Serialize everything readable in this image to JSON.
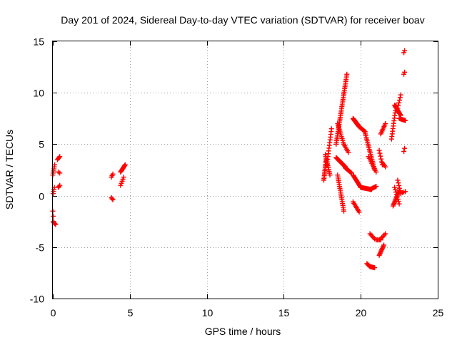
{
  "chart_data": {
    "type": "scatter",
    "title": "Day 201 of 2024, Sidereal Day-to-day VTEC variation (SDTVAR) for receiver boav",
    "xlabel": "GPS time / hours",
    "ylabel": "SDTVAR / TECUs",
    "xlim": [
      0,
      25
    ],
    "ylim": [
      -10,
      15
    ],
    "xticks": [
      0,
      5,
      10,
      15,
      20,
      25
    ],
    "yticks": [
      -10,
      -5,
      0,
      5,
      10,
      15
    ],
    "grid": true,
    "marker": "+",
    "color": "#ff0000",
    "segments": [
      {
        "x0": 0.0,
        "x1": 0.12,
        "y0": 2.0,
        "y1": 3.0,
        "n": 6
      },
      {
        "x0": 0.02,
        "x1": 0.1,
        "y0": 0.2,
        "y1": 0.8,
        "n": 4
      },
      {
        "x0": 0.0,
        "x1": 0.05,
        "y0": -1.5,
        "y1": -2.5,
        "n": 3
      },
      {
        "x0": 0.05,
        "x1": 0.18,
        "y0": -2.6,
        "y1": -2.8,
        "n": 4
      },
      {
        "x0": 0.3,
        "x1": 0.45,
        "y0": 3.5,
        "y1": 3.8,
        "n": 4
      },
      {
        "x0": 0.35,
        "x1": 0.45,
        "y0": 2.3,
        "y1": 2.2,
        "n": 2
      },
      {
        "x0": 0.35,
        "x1": 0.45,
        "y0": 0.8,
        "y1": 1.0,
        "n": 3
      },
      {
        "x0": 3.8,
        "x1": 3.9,
        "y0": 1.8,
        "y1": 2.1,
        "n": 3
      },
      {
        "x0": 3.8,
        "x1": 3.9,
        "y0": -0.2,
        "y1": -0.4,
        "n": 3
      },
      {
        "x0": 4.4,
        "x1": 4.7,
        "y0": 2.3,
        "y1": 3.0,
        "n": 10
      },
      {
        "x0": 4.4,
        "x1": 4.6,
        "y0": 1.0,
        "y1": 1.8,
        "n": 5
      },
      {
        "x0": 17.6,
        "x1": 17.75,
        "y0": 1.5,
        "y1": 3.5,
        "n": 14
      },
      {
        "x0": 17.7,
        "x1": 18.0,
        "y0": 4.0,
        "y1": 2.0,
        "n": 12
      },
      {
        "x0": 17.8,
        "x1": 18.1,
        "y0": 3.0,
        "y1": 6.5,
        "n": 14
      },
      {
        "x0": 18.4,
        "x1": 19.1,
        "y0": 5.0,
        "y1": 11.8,
        "n": 40
      },
      {
        "x0": 18.5,
        "x1": 18.9,
        "y0": 7.0,
        "y1": 5.0,
        "n": 12
      },
      {
        "x0": 18.9,
        "x1": 19.2,
        "y0": 5.0,
        "y1": 4.2,
        "n": 6
      },
      {
        "x0": 18.4,
        "x1": 19.0,
        "y0": 3.7,
        "y1": 2.8,
        "n": 18
      },
      {
        "x0": 18.5,
        "x1": 18.9,
        "y0": 2.0,
        "y1": -1.5,
        "n": 20
      },
      {
        "x0": 19.0,
        "x1": 19.4,
        "y0": 2.7,
        "y1": 2.2,
        "n": 10
      },
      {
        "x0": 19.5,
        "x1": 19.9,
        "y0": 7.5,
        "y1": 6.7,
        "n": 18
      },
      {
        "x0": 19.9,
        "x1": 20.3,
        "y0": 6.7,
        "y1": 6.2,
        "n": 10
      },
      {
        "x0": 20.3,
        "x1": 20.9,
        "y0": 6.0,
        "y1": 2.5,
        "n": 22
      },
      {
        "x0": 20.5,
        "x1": 21.0,
        "y0": 3.8,
        "y1": 2.3,
        "n": 10
      },
      {
        "x0": 19.5,
        "x1": 20.0,
        "y0": 2.0,
        "y1": 0.8,
        "n": 14
      },
      {
        "x0": 20.0,
        "x1": 20.7,
        "y0": 0.8,
        "y1": 0.6,
        "n": 16
      },
      {
        "x0": 20.6,
        "x1": 21.0,
        "y0": 0.6,
        "y1": 0.9,
        "n": 8
      },
      {
        "x0": 19.5,
        "x1": 19.9,
        "y0": -0.6,
        "y1": -1.6,
        "n": 8
      },
      {
        "x0": 20.4,
        "x1": 20.6,
        "y0": -6.6,
        "y1": -6.9,
        "n": 5
      },
      {
        "x0": 20.6,
        "x1": 20.9,
        "y0": -6.9,
        "y1": -7.0,
        "n": 7
      },
      {
        "x0": 20.6,
        "x1": 20.9,
        "y0": -3.7,
        "y1": -4.2,
        "n": 5
      },
      {
        "x0": 21.0,
        "x1": 21.3,
        "y0": -4.3,
        "y1": -4.3,
        "n": 5
      },
      {
        "x0": 21.3,
        "x1": 21.6,
        "y0": -4.2,
        "y1": -3.7,
        "n": 5
      },
      {
        "x0": 21.2,
        "x1": 21.5,
        "y0": -5.8,
        "y1": -4.8,
        "n": 10
      },
      {
        "x0": 21.3,
        "x1": 21.6,
        "y0": 6.0,
        "y1": 7.0,
        "n": 8
      },
      {
        "x0": 21.2,
        "x1": 21.4,
        "y0": 4.4,
        "y1": 3.0,
        "n": 6
      },
      {
        "x0": 21.4,
        "x1": 21.6,
        "y0": 3.2,
        "y1": 2.8,
        "n": 4
      },
      {
        "x0": 22.0,
        "x1": 22.3,
        "y0": 5.5,
        "y1": 8.8,
        "n": 14
      },
      {
        "x0": 22.2,
        "x1": 22.6,
        "y0": 8.8,
        "y1": 7.8,
        "n": 12
      },
      {
        "x0": 22.4,
        "x1": 22.6,
        "y0": 8.5,
        "y1": 9.8,
        "n": 6
      },
      {
        "x0": 22.5,
        "x1": 22.9,
        "y0": 7.5,
        "y1": 7.3,
        "n": 8
      },
      {
        "x0": 22.1,
        "x1": 22.5,
        "y0": -1.0,
        "y1": 0.5,
        "n": 14
      },
      {
        "x0": 22.2,
        "x1": 22.5,
        "y0": 0.8,
        "y1": -0.8,
        "n": 8
      },
      {
        "x0": 22.4,
        "x1": 22.6,
        "y0": 1.5,
        "y1": 0.2,
        "n": 6
      },
      {
        "x0": 22.7,
        "x1": 22.9,
        "y0": 0.3,
        "y1": 0.4,
        "n": 3
      },
      {
        "x0": 22.8,
        "x1": 22.85,
        "y0": 4.3,
        "y1": 4.6,
        "n": 2
      },
      {
        "x0": 22.8,
        "x1": 22.85,
        "y0": 11.8,
        "y1": 12.0,
        "n": 2
      },
      {
        "x0": 22.8,
        "x1": 22.85,
        "y0": 13.9,
        "y1": 14.1,
        "n": 2
      }
    ]
  }
}
